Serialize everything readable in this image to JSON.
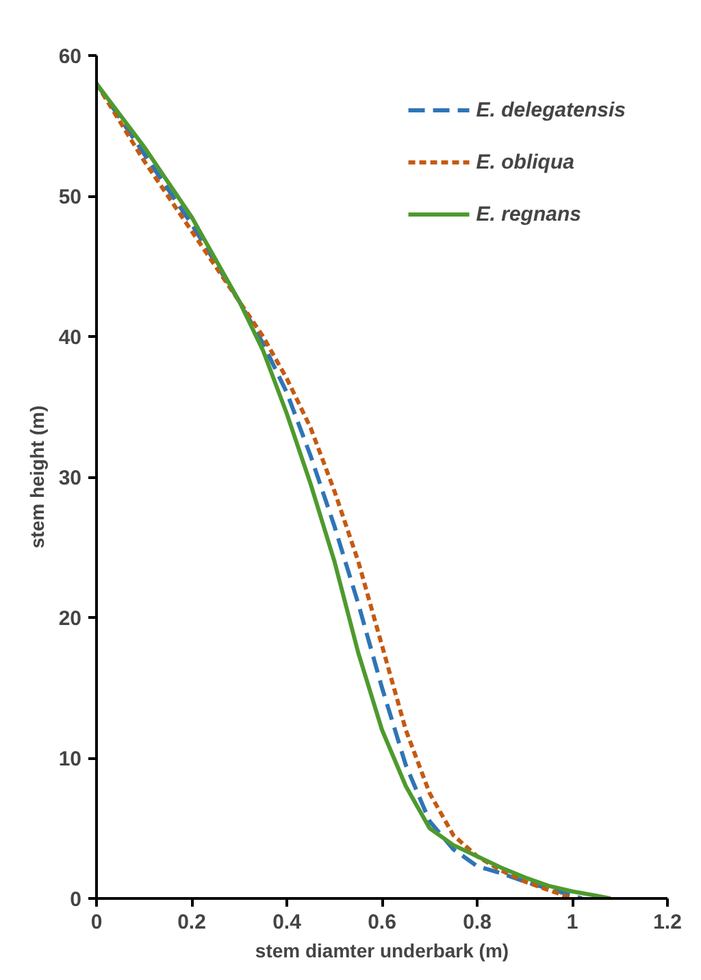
{
  "chart_data": {
    "type": "line",
    "xlabel": "stem diamter underbark (m)",
    "ylabel": "stem height (m)",
    "xlim": [
      0,
      1.2
    ],
    "xticks": [
      0,
      0.2,
      0.4,
      0.6,
      0.8,
      1,
      1.2
    ],
    "ylim": [
      0,
      60
    ],
    "yticks": [
      0,
      10,
      20,
      30,
      40,
      50,
      60
    ],
    "grid": false,
    "legend": "top right",
    "marker": "none",
    "series": [
      {
        "name": "E. delegatensis",
        "color": "#2e75b6",
        "line_style": "dashed",
        "x": [
          0,
          0.1,
          0.2,
          0.3,
          0.35,
          0.4,
          0.45,
          0.5,
          0.55,
          0.6,
          0.65,
          0.7,
          0.75,
          0.8,
          0.85,
          0.9,
          0.95,
          1.0,
          1.02
        ],
        "values": [
          58,
          53,
          48,
          42.5,
          39.5,
          36,
          31.5,
          26.5,
          21,
          15,
          9.5,
          5.5,
          3.5,
          2.3,
          1.8,
          1.2,
          0.7,
          0.2,
          0
        ]
      },
      {
        "name": "E. obliqua",
        "color": "#c55a11",
        "line_style": "dotted",
        "x": [
          0,
          0.1,
          0.2,
          0.3,
          0.35,
          0.4,
          0.45,
          0.5,
          0.55,
          0.6,
          0.65,
          0.7,
          0.75,
          0.8,
          0.85,
          0.9,
          0.95,
          1.0
        ],
        "values": [
          58,
          52.5,
          47.5,
          42.5,
          40,
          37,
          33.5,
          29,
          24,
          18,
          12,
          7.5,
          4.5,
          3,
          2,
          1.2,
          0.6,
          0
        ]
      },
      {
        "name": "E. regnans",
        "color": "#4e9a2e",
        "line_style": "solid",
        "x": [
          0,
          0.1,
          0.2,
          0.3,
          0.35,
          0.4,
          0.45,
          0.5,
          0.55,
          0.6,
          0.65,
          0.7,
          0.75,
          0.8,
          0.85,
          0.9,
          0.95,
          1.0,
          1.05,
          1.08
        ],
        "values": [
          58,
          53.5,
          48.5,
          42.5,
          39,
          34.5,
          29.5,
          24,
          17.5,
          12,
          8,
          5,
          3.8,
          3,
          2.2,
          1.5,
          0.9,
          0.5,
          0.2,
          0
        ]
      }
    ]
  }
}
